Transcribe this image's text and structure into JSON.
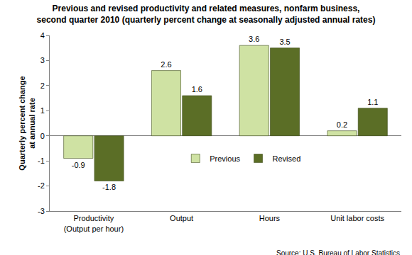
{
  "chart_data": {
    "type": "bar",
    "title": "Previous and revised productivity and related measures, nonfarm business,\nsecond quarter 2010 (quarterly percent change at seasonally adjusted annual rates)",
    "y_label": "Quarterly percent change\nat annual rate",
    "source": "Source: U.S. Bureau of Labor Statistics",
    "categories": [
      "Productivity\n(Output per hour)",
      "Output",
      "Hours",
      "Unit labor costs"
    ],
    "series": [
      {
        "name": "Previous",
        "color": "#cfe2a3",
        "values": [
          -0.9,
          2.6,
          3.6,
          0.2
        ]
      },
      {
        "name": "Revised",
        "color": "#5b6e26",
        "values": [
          -1.8,
          1.6,
          3.5,
          1.1
        ]
      }
    ],
    "ylim": [
      -3,
      4
    ],
    "yticks": [
      -3,
      -2,
      -1,
      0,
      1,
      2,
      3,
      4
    ],
    "grid": false,
    "data_labels": true,
    "legend": "center"
  }
}
